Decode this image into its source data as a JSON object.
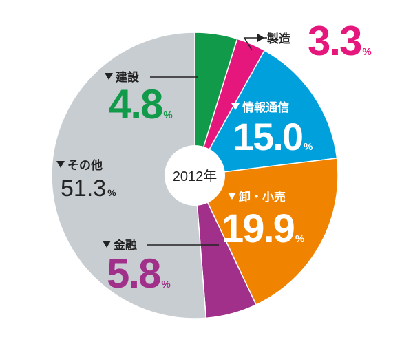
{
  "chart_data": {
    "type": "pie",
    "center_label": "2012年",
    "unit": "%",
    "slices": [
      {
        "label": "建設",
        "value": 4.8,
        "display": "4.8",
        "color": "#119a49",
        "label_color": "#119a49"
      },
      {
        "label": "製造",
        "value": 3.3,
        "display": "3.3",
        "color": "#e5177d",
        "label_color": "#e5177d"
      },
      {
        "label": "情報通信",
        "value": 15.0,
        "display": "15.0",
        "color": "#00a0dc",
        "label_color": "#ffffff"
      },
      {
        "label": "卸・小売",
        "value": 19.9,
        "display": "19.9",
        "color": "#f08300",
        "label_color": "#ffffff"
      },
      {
        "label": "金融",
        "value": 5.8,
        "display": "5.8",
        "color": "#a0308a",
        "label_color": "#a0308a"
      },
      {
        "label": "その他",
        "value": 51.3,
        "display": "51.3",
        "color": "#c8cdd1",
        "label_color": "#222222"
      }
    ]
  }
}
